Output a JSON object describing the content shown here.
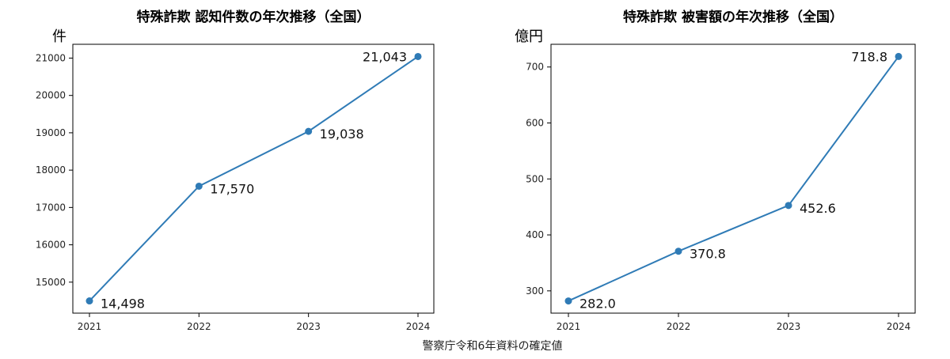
{
  "chart_data": [
    {
      "type": "line",
      "title": "特殊詐欺 認知件数の年次推移（全国）",
      "ylabel": "件",
      "xlabel": "",
      "categories": [
        "2021",
        "2022",
        "2023",
        "2024"
      ],
      "values": [
        14498,
        17570,
        19038,
        21043
      ],
      "data_labels": [
        "14,498",
        "17,570",
        "19,038",
        "21,043"
      ],
      "yticks": [
        15000,
        16000,
        17000,
        18000,
        19000,
        20000,
        21000
      ],
      "ylim": [
        14170,
        21370
      ],
      "grid": false,
      "color": "#2f7bb6"
    },
    {
      "type": "line",
      "title": "特殊詐欺 被害額の年次推移（全国）",
      "ylabel": "億円",
      "xlabel": "",
      "categories": [
        "2021",
        "2022",
        "2023",
        "2024"
      ],
      "values": [
        282.0,
        370.8,
        452.6,
        718.8
      ],
      "data_labels": [
        "282.0",
        "370.8",
        "452.6",
        "718.8"
      ],
      "yticks": [
        300,
        400,
        500,
        600,
        700
      ],
      "ylim": [
        260.2,
        740.6
      ],
      "grid": false,
      "color": "#2f7bb6"
    }
  ],
  "source": "警察庁令和6年資料の確定値"
}
